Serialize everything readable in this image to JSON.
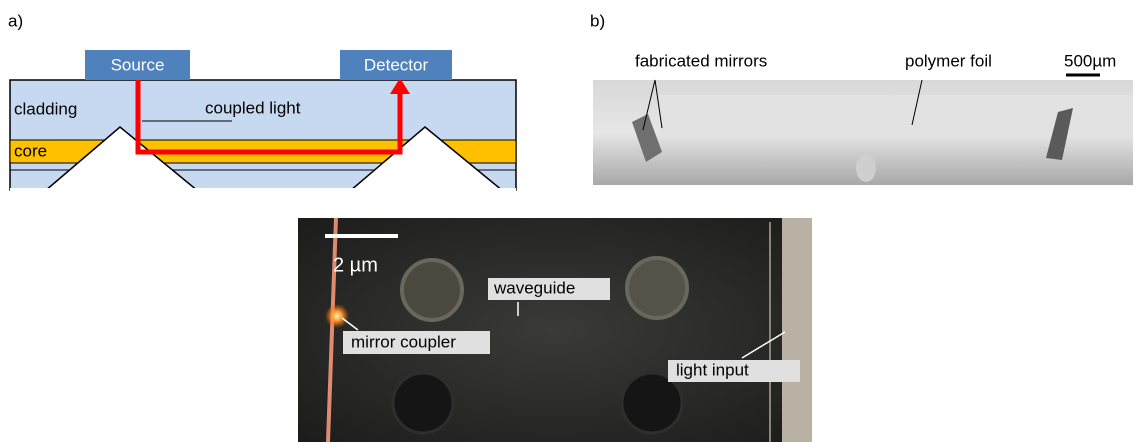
{
  "panel_a": {
    "label": "a)",
    "source": "Source",
    "detector": "Detector",
    "cladding": "cladding",
    "coupled_light": "coupled light",
    "core": "core"
  },
  "panel_b": {
    "label": "b)",
    "mirrors": "fabricated mirrors",
    "foil": "polymer foil",
    "scale": "500µm"
  },
  "panel_c": {
    "scale": "2 µm",
    "waveguide": "waveguide",
    "mirror_coupler": "mirror coupler",
    "light_input": "light input"
  }
}
